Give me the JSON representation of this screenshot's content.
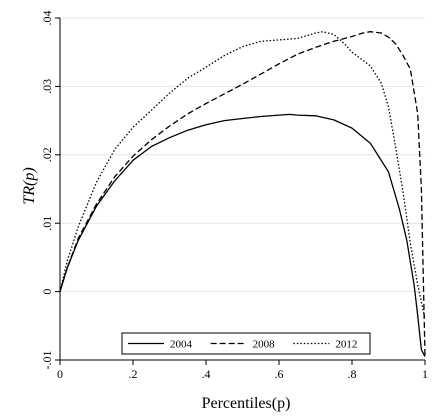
{
  "chart_data": {
    "type": "line",
    "title": "",
    "xlabel": "Percentiles(p)",
    "ylabel": "TR(p)",
    "xlim": [
      0,
      1
    ],
    "ylim": [
      -0.01,
      0.04
    ],
    "x_ticks": [
      0,
      0.2,
      0.4,
      0.6,
      0.8,
      1
    ],
    "x_tick_labels": [
      "0",
      ".2",
      ".4",
      ".6",
      ".8",
      "1"
    ],
    "y_ticks": [
      -0.01,
      0,
      0.01,
      0.02,
      0.03,
      0.04
    ],
    "y_tick_labels": [
      "-.01",
      "0",
      ".01",
      ".02",
      ".03",
      ".04"
    ],
    "grid": "horizontal",
    "legend_position": "bottom-center",
    "series": [
      {
        "name": "2004",
        "style": "solid",
        "x": [
          0,
          0.02,
          0.05,
          0.1,
          0.15,
          0.2,
          0.25,
          0.3,
          0.35,
          0.4,
          0.45,
          0.5,
          0.55,
          0.6,
          0.63,
          0.65,
          0.7,
          0.75,
          0.8,
          0.85,
          0.9,
          0.93,
          0.95,
          0.97,
          0.98,
          0.99,
          1.0
        ],
        "y": [
          0,
          0.0035,
          0.0075,
          0.0125,
          0.0162,
          0.0192,
          0.0212,
          0.0225,
          0.0236,
          0.0244,
          0.025,
          0.0253,
          0.0256,
          0.0258,
          0.0259,
          0.0258,
          0.0257,
          0.0251,
          0.0239,
          0.0217,
          0.0175,
          0.012,
          0.0075,
          0.001,
          -0.0035,
          -0.0085,
          -0.0095
        ]
      },
      {
        "name": "2008",
        "style": "dashed",
        "x": [
          0,
          0.02,
          0.05,
          0.1,
          0.15,
          0.2,
          0.25,
          0.3,
          0.35,
          0.4,
          0.45,
          0.5,
          0.55,
          0.6,
          0.65,
          0.7,
          0.75,
          0.8,
          0.83,
          0.85,
          0.88,
          0.9,
          0.92,
          0.94,
          0.96,
          0.98,
          0.99,
          1.0
        ],
        "y": [
          0,
          0.0035,
          0.0078,
          0.0128,
          0.0168,
          0.0198,
          0.0222,
          0.0242,
          0.026,
          0.0275,
          0.0289,
          0.0303,
          0.0318,
          0.0333,
          0.0347,
          0.0357,
          0.0366,
          0.0373,
          0.0378,
          0.038,
          0.0378,
          0.0372,
          0.0362,
          0.0345,
          0.0325,
          0.026,
          0.015,
          -0.0095
        ]
      },
      {
        "name": "2012",
        "style": "dotted",
        "x": [
          0,
          0.02,
          0.05,
          0.1,
          0.15,
          0.2,
          0.25,
          0.3,
          0.35,
          0.4,
          0.45,
          0.5,
          0.55,
          0.6,
          0.65,
          0.7,
          0.72,
          0.75,
          0.78,
          0.8,
          0.85,
          0.88,
          0.9,
          0.92,
          0.94,
          0.96,
          0.98,
          1.0
        ],
        "y": [
          0,
          0.0045,
          0.0095,
          0.016,
          0.0208,
          0.024,
          0.0265,
          0.029,
          0.0312,
          0.0328,
          0.0345,
          0.0358,
          0.0366,
          0.0368,
          0.037,
          0.0378,
          0.038,
          0.0376,
          0.0362,
          0.035,
          0.033,
          0.0305,
          0.027,
          0.021,
          0.0145,
          0.007,
          0.001,
          -0.004
        ]
      }
    ]
  }
}
